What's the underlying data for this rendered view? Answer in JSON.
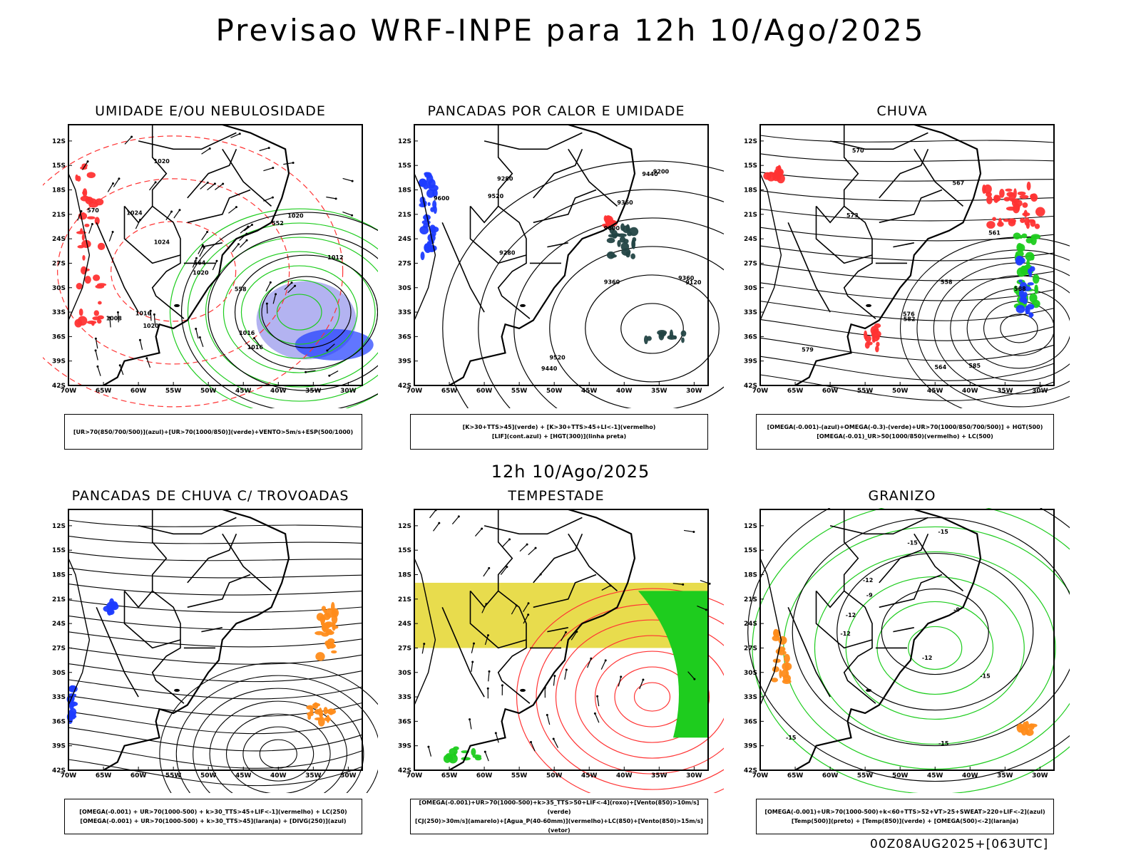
{
  "title": "Previsao WRF-INPE  para 12h 10/Ago/2025",
  "subtitle": "12h 10/Ago/2025",
  "footer": "00Z08AUG2025+[063UTC]",
  "axes": {
    "lat_labels": [
      "12S",
      "15S",
      "18S",
      "21S",
      "24S",
      "27S",
      "30S",
      "33S",
      "36S",
      "39S",
      "42S"
    ],
    "lon_labels": [
      "70W",
      "65W",
      "60W",
      "55W",
      "50W",
      "45W",
      "40W",
      "35W",
      "30W"
    ]
  },
  "colors": {
    "blue": "#1e3cff",
    "green": "#1ecc1e",
    "red": "#ff3333",
    "yellow": "#e6d83a",
    "orange": "#ff8c1a",
    "darkslate": "#234444",
    "lavender": "#a0a0ee"
  },
  "panels": [
    {
      "title": "UMIDADE E/OU NEBULOSIDADE",
      "legend": [
        "[UR>70(850/700/500)](azul)+[UR>70(1000/850)](verde)+VENTO>5m/s+ESP(500/1000)"
      ],
      "labels": [
        "1016",
        "1020",
        "1016",
        "1024",
        "1020",
        "1016",
        "1012",
        "1024",
        "1020",
        "1020",
        "1008",
        "570",
        "564",
        "558",
        "552"
      ]
    },
    {
      "title": "PANCADAS POR CALOR E UMIDADE",
      "legend": [
        "[K>30+TTS>45](verde) + [K>30+TTS>45+LI<-1](vermelho)",
        "[LIF](cont.azul) + [HGT(300)](linha preta)"
      ],
      "labels": [
        "9600",
        "9520",
        "9600",
        "9520",
        "9440",
        "9440",
        "9360",
        "9280",
        "9200",
        "9120",
        "9360",
        "9280",
        "9360"
      ]
    },
    {
      "title": "CHUVA",
      "legend": [
        "[OMEGA(-0.001)-(azul)+OMEGA(-0.3)-(verde)+UR>70(1000/850/700/500)] + HGT(500)",
        "[OMEGA(-0.01)_UR>50(1000/850)(vermelho) + LC(500)"
      ],
      "labels": [
        "588",
        "585",
        "582",
        "579",
        "576",
        "573",
        "570",
        "567",
        "564",
        "561",
        "558"
      ]
    },
    {
      "title": "PANCADAS DE CHUVA C/ TROVOADAS",
      "legend": [
        "[OMEGA(-0.001) + UR>70(1000-500) + k>30_TTS>45+LIF<-1](vermelho) + LC(250)",
        "[OMEGA(-0.001) + UR>70(1000-500) + k>30_TTS>45](laranja) + [DIVG(250)](azul)"
      ],
      "labels": []
    },
    {
      "title": "TEMPESTADE",
      "legend": [
        "[OMEGA(-0.001)+UR>70(1000-500)+k>35_TTS>50+LIF<-4](roxo)+[Vento(850)>10m/s](verde)",
        "[CJ(250)>30m/s](amarelo)+[Agua_P(40-60mm)](vermelho)+LC(850)+[Vento(850)>15m/s](vetor)"
      ],
      "labels": []
    },
    {
      "title": "GRANIZO",
      "legend": [
        "[OMEGA(-0.001)+UR>70(1000-500)+k<60+TTS>52+VT>25+SWEAT>220+LIF<-2](azul)",
        "[Temp(500)](preto) + [Temp(850)](verde) + [OMEGA(500)<-2](laranja)"
      ],
      "labels": [
        "-15",
        "-12",
        "-9",
        "-12",
        "-15",
        "-15",
        "-12",
        "-9",
        "-12",
        "-15",
        "-15"
      ]
    }
  ]
}
